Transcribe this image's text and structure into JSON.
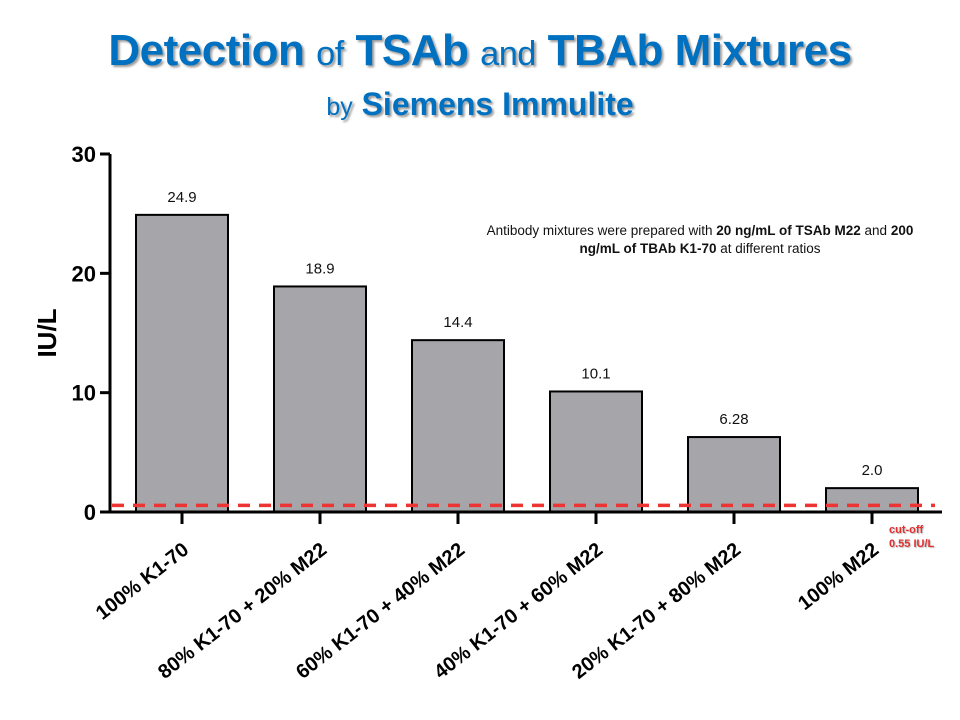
{
  "title": {
    "part1": "Detection",
    "part2": "of",
    "part3": "TSAb",
    "part4": "and",
    "part5": "TBAb Mixtures"
  },
  "subtitle": {
    "part1": "by",
    "part2": "Siemens Immulite"
  },
  "annotation": {
    "t1": "Antibody mixtures  were prepared with ",
    "b1": "20 ng/mL of TSAb M22",
    "t2": " and ",
    "b2": "200 ng/mL of TBAb K1-70",
    "t3": " at different ratios"
  },
  "cutoff": {
    "line1": "cut-off",
    "line2": "0.55 IU/L",
    "value": 0.55,
    "color": "#ee3333"
  },
  "chart_data": {
    "type": "bar",
    "categories": [
      "100% K1-70",
      "80% K1-70 + 20% M22",
      "60% K1-70 + 40% M22",
      "40% K1-70 + 60% M22",
      "20% K1-70 + 80% M22",
      "100% M22"
    ],
    "values": [
      24.9,
      18.9,
      14.4,
      10.1,
      6.28,
      2.0
    ],
    "data_labels": [
      "24.9",
      "18.9",
      "14.4",
      "10.1",
      "6.28",
      "2.0"
    ],
    "ylabel": "IU/L",
    "xlabel": "",
    "ylim": [
      0,
      30
    ],
    "yticks": [
      "0",
      "10",
      "20",
      "30"
    ],
    "grid": false,
    "bar_color": "#a6a5aa"
  }
}
